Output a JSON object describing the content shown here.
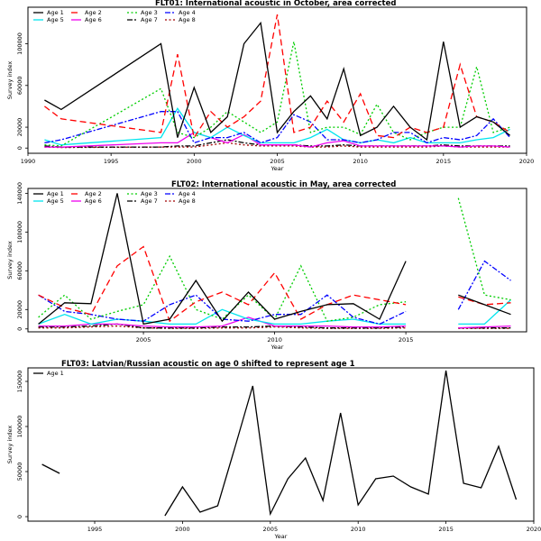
{
  "series_styles": [
    {
      "color": "#000000",
      "dash": ""
    },
    {
      "color": "#ff0000",
      "dash": "7,4"
    },
    {
      "color": "#00cd00",
      "dash": "2,2.5"
    },
    {
      "color": "#0000ff",
      "dash": "6,2,2,2"
    },
    {
      "color": "#00e5ee",
      "dash": ""
    },
    {
      "color": "#ee00ee",
      "dash": ""
    },
    {
      "color": "#000000",
      "dash": "6,2,2,2"
    },
    {
      "color": "#a00000",
      "dash": "2,2.5"
    }
  ],
  "chart_data": [
    {
      "type": "line",
      "title": "FLT01:        International acoustic in October, area corrected",
      "xlabel": "Year",
      "ylabel": "Survey index",
      "xlim": [
        1990,
        2020
      ],
      "ylim": [
        -5000,
        135000
      ],
      "xticks": [
        1990,
        1995,
        2000,
        2005,
        2010,
        2015,
        2020
      ],
      "yticks": [
        0,
        20000,
        60000,
        100000
      ],
      "legend": "top-left",
      "series": [
        {
          "name": "Age 1",
          "x": [
            1991,
            1992,
            1998,
            1999,
            2000,
            2001,
            2002,
            2003,
            2004,
            2005,
            2006,
            2007,
            2008,
            2009,
            2010,
            2011,
            2012,
            2013,
            2014,
            2015,
            2016,
            2017,
            2018,
            2019
          ],
          "y": [
            46000,
            37000,
            100000,
            10000,
            58000,
            15000,
            30000,
            100000,
            120000,
            15000,
            35000,
            50000,
            28000,
            76000,
            12000,
            20000,
            40000,
            20000,
            8000,
            102000,
            20000,
            30000,
            25000,
            12000
          ]
        },
        {
          "name": "Age 2",
          "x": [
            1991,
            1992,
            1998,
            1999,
            2000,
            2001,
            2002,
            2003,
            2004,
            2005,
            2006,
            2007,
            2008,
            2009,
            2010,
            2011,
            2012,
            2013,
            2014,
            2015,
            2016,
            2017,
            2018,
            2019
          ],
          "y": [
            40000,
            28000,
            15000,
            90000,
            10000,
            35000,
            20000,
            30000,
            45000,
            128000,
            15000,
            20000,
            45000,
            25000,
            52000,
            12000,
            10000,
            20000,
            15000,
            20000,
            80000,
            30000,
            25000,
            15000
          ]
        },
        {
          "name": "Age 3",
          "x": [
            1991,
            1992,
            1998,
            1999,
            2000,
            2001,
            2002,
            2003,
            2004,
            2005,
            2006,
            2007,
            2008,
            2009,
            2010,
            2011,
            2012,
            2013,
            2014,
            2015,
            2016,
            2017,
            2018,
            2019
          ],
          "y": [
            3000,
            2000,
            57000,
            15000,
            10000,
            20000,
            35000,
            25000,
            15000,
            25000,
            102000,
            15000,
            20000,
            20000,
            13000,
            42000,
            15000,
            8000,
            15000,
            20000,
            20000,
            78000,
            15000,
            20000
          ]
        },
        {
          "name": "Age 4",
          "x": [
            1991,
            1992,
            1998,
            1999,
            2000,
            2001,
            2002,
            2003,
            2004,
            2005,
            2006,
            2007,
            2008,
            2009,
            2010,
            2011,
            2012,
            2013,
            2014,
            2015,
            2016,
            2017,
            2018,
            2019
          ],
          "y": [
            5000,
            8000,
            35000,
            35000,
            5000,
            10000,
            10000,
            15000,
            5000,
            10000,
            32000,
            25000,
            8000,
            8000,
            5000,
            8000,
            15000,
            15000,
            5000,
            10000,
            8000,
            12000,
            28000,
            10000
          ]
        },
        {
          "name": "Age 5",
          "x": [
            1991,
            1992,
            1998,
            1999,
            2000,
            2001,
            2002,
            2003,
            2004,
            2005,
            2006,
            2007,
            2008,
            2009,
            2010,
            2011,
            2012,
            2013,
            2014,
            2015,
            2016,
            2017,
            2018,
            2019
          ],
          "y": [
            8000,
            3000,
            10000,
            38000,
            15000,
            10000,
            20000,
            12000,
            5000,
            5000,
            5000,
            10000,
            18000,
            8000,
            5000,
            8000,
            5000,
            10000,
            5000,
            5000,
            5000,
            8000,
            10000,
            18000
          ]
        },
        {
          "name": "Age 6",
          "x": [
            1991,
            1992,
            1998,
            1999,
            2000,
            2001,
            2002,
            2003,
            2004,
            2005,
            2006,
            2007,
            2008,
            2009,
            2010,
            2011,
            2012,
            2013,
            2014,
            2015,
            2016,
            2017,
            2018,
            2019
          ],
          "y": [
            1000,
            1000,
            5000,
            5000,
            15000,
            10000,
            5000,
            13000,
            3000,
            3000,
            3000,
            1000,
            5000,
            7000,
            2000,
            2000,
            2000,
            2000,
            2000,
            2000,
            1000,
            2000,
            2000,
            1000
          ]
        },
        {
          "name": "Age 7",
          "x": [
            1991,
            1992,
            1998,
            1999,
            2000,
            2001,
            2002,
            2003,
            2004,
            2005,
            2006,
            2007,
            2008,
            2009,
            2010,
            2011,
            2012,
            2013,
            2014,
            2015,
            2016,
            2017,
            2018,
            2019
          ],
          "y": [
            2000,
            1000,
            1000,
            2000,
            2000,
            5000,
            8000,
            5000,
            3000,
            3000,
            3000,
            2000,
            2000,
            3000,
            2000,
            2000,
            2000,
            2000,
            2000,
            3000,
            2000,
            2000,
            2000,
            2000
          ]
        },
        {
          "name": "Age 8",
          "x": [
            1991,
            1992,
            1998,
            1999,
            2000,
            2001,
            2002,
            2003,
            2004,
            2005,
            2006,
            2007,
            2008,
            2009,
            2010,
            2011,
            2012,
            2013,
            2014,
            2015,
            2016,
            2017,
            2018,
            2019
          ],
          "y": [
            1000,
            500,
            1000,
            1000,
            1000,
            3000,
            5000,
            3000,
            2000,
            2000,
            2000,
            1000,
            1000,
            2000,
            1000,
            1000,
            1000,
            1000,
            1000,
            2000,
            1000,
            1000,
            1000,
            1000
          ]
        }
      ]
    },
    {
      "type": "line",
      "title": "FLT02: International acoustic in May, area corrected",
      "xlabel": "Year",
      "ylabel": "Survey index",
      "xlim": [
        2000.6,
        2019.6
      ],
      "ylim": [
        -3000,
        145000
      ],
      "xticks": [
        2005,
        2010,
        2015
      ],
      "yticks": [
        0,
        20000,
        60000,
        100000,
        140000
      ],
      "legend": "top-left",
      "series": [
        {
          "name": "Age 1",
          "x": [
            2001,
            2002,
            2003,
            2004,
            2005,
            2006,
            2007,
            2008,
            2009,
            2010,
            2011,
            2012,
            2013,
            2014,
            2015,
            null,
            2017,
            2018,
            2019
          ],
          "y": [
            5000,
            27000,
            26000,
            140000,
            5000,
            10000,
            50000,
            8000,
            38000,
            10000,
            18000,
            25000,
            26000,
            10000,
            70000,
            null,
            35000,
            25000,
            15000
          ]
        },
        {
          "name": "Age 2",
          "x": [
            2001,
            2002,
            2003,
            2004,
            2005,
            2006,
            2007,
            2008,
            2009,
            2010,
            2011,
            2012,
            2013,
            2014,
            2015,
            null,
            2017,
            2018,
            2019
          ],
          "y": [
            35000,
            22000,
            15000,
            65000,
            85000,
            8000,
            28000,
            38000,
            25000,
            58000,
            10000,
            25000,
            35000,
            30000,
            25000,
            null,
            33000,
            25000,
            27000
          ]
        },
        {
          "name": "Age 3",
          "x": [
            2001,
            2002,
            2003,
            2004,
            2005,
            2006,
            2007,
            2008,
            2009,
            2010,
            2011,
            2012,
            2013,
            2014,
            2015,
            null,
            2017,
            2018,
            2019
          ],
          "y": [
            12000,
            35000,
            10000,
            18000,
            25000,
            75000,
            20000,
            10000,
            35000,
            10000,
            65000,
            8000,
            12000,
            25000,
            28000,
            null,
            135000,
            35000,
            30000
          ]
        },
        {
          "name": "Age 4",
          "x": [
            2001,
            2002,
            2003,
            2004,
            2005,
            2006,
            2007,
            2008,
            2009,
            2010,
            2011,
            2012,
            2013,
            2014,
            2015,
            null,
            2017,
            2018,
            2019
          ],
          "y": [
            35000,
            18000,
            15000,
            10000,
            8000,
            25000,
            35000,
            10000,
            8000,
            15000,
            15000,
            35000,
            12000,
            5000,
            18000,
            null,
            20000,
            70000,
            50000
          ]
        },
        {
          "name": "Age 5",
          "x": [
            2001,
            2002,
            2003,
            2004,
            2005,
            2006,
            2007,
            2008,
            2009,
            2010,
            2011,
            2012,
            2013,
            2014,
            2015,
            null,
            2017,
            2018,
            2019
          ],
          "y": [
            5000,
            15000,
            5000,
            10000,
            8000,
            5000,
            5000,
            20000,
            10000,
            5000,
            5000,
            8000,
            10000,
            5000,
            5000,
            null,
            5000,
            5000,
            30000
          ]
        },
        {
          "name": "Age 6",
          "x": [
            2001,
            2002,
            2003,
            2004,
            2005,
            2006,
            2007,
            2008,
            2009,
            2010,
            2011,
            2012,
            2013,
            2014,
            2015,
            null,
            2017,
            2018,
            2019
          ],
          "y": [
            3000,
            3000,
            5000,
            5000,
            3000,
            2000,
            2000,
            3000,
            12000,
            3000,
            3000,
            3000,
            2000,
            2000,
            3000,
            null,
            1000,
            2000,
            3000
          ]
        },
        {
          "name": "Age 7",
          "x": [
            2001,
            2002,
            2003,
            2004,
            2005,
            2006,
            2007,
            2008,
            2009,
            2010,
            2011,
            2012,
            2013,
            2014,
            2015,
            null,
            2017,
            2018,
            2019
          ],
          "y": [
            2000,
            2000,
            3000,
            5000,
            1000,
            1000,
            1000,
            2000,
            2000,
            3000,
            2000,
            1000,
            1000,
            1000,
            2000,
            null,
            1000,
            1000,
            1000
          ]
        },
        {
          "name": "Age 8",
          "x": [
            2001,
            2002,
            2003,
            2004,
            2005,
            2006,
            2007,
            2008,
            2009,
            2010,
            2011,
            2012,
            2013,
            2014,
            2015,
            null,
            2017,
            2018,
            2019
          ],
          "y": [
            1000,
            1000,
            2000,
            3000,
            1000,
            500,
            500,
            1000,
            1000,
            2000,
            1000,
            500,
            500,
            500,
            1000,
            null,
            500,
            500,
            500
          ]
        }
      ]
    },
    {
      "type": "line",
      "title": "FLT03: Latvian/Russian acoustic on age 0 shifted to represent age 1",
      "xlabel": "Year",
      "ylabel": "Survey index",
      "xlim": [
        1991.2,
        2020
      ],
      "ylim": [
        -5000,
        165000
      ],
      "xticks": [
        1995,
        2000,
        2005,
        2010,
        2015,
        2020
      ],
      "yticks": [
        0,
        50000,
        100000,
        150000
      ],
      "legend": "top-left",
      "series": [
        {
          "name": "Age 1",
          "x": [
            1992,
            1993,
            null,
            1999,
            2000,
            2001,
            2002,
            2003,
            2004,
            2005,
            2006,
            2007,
            2008,
            2009,
            2010,
            2011,
            2012,
            2013,
            2014,
            2015,
            2016,
            2017,
            2018,
            2019
          ],
          "y": [
            58000,
            48000,
            null,
            1000,
            33000,
            5000,
            12000,
            78000,
            145000,
            3000,
            42000,
            65000,
            18000,
            115000,
            13000,
            42000,
            45000,
            33000,
            25000,
            162000,
            37000,
            32000,
            78000,
            19000
          ]
        }
      ]
    }
  ]
}
